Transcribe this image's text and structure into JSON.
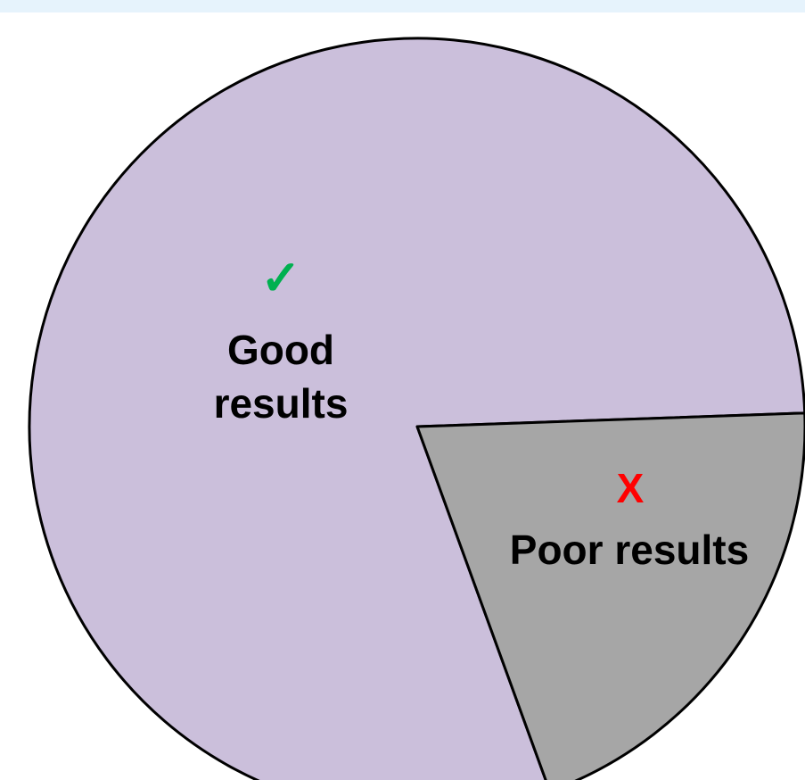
{
  "chart_data": {
    "type": "pie",
    "categories": [
      "Good results",
      "Poor results"
    ],
    "values": [
      80,
      20
    ],
    "colors": [
      "#cbbfdb",
      "#a6a6a6"
    ],
    "icons": [
      "✓",
      "X"
    ],
    "icon_colors": [
      "#00b050",
      "#ff0000"
    ]
  }
}
